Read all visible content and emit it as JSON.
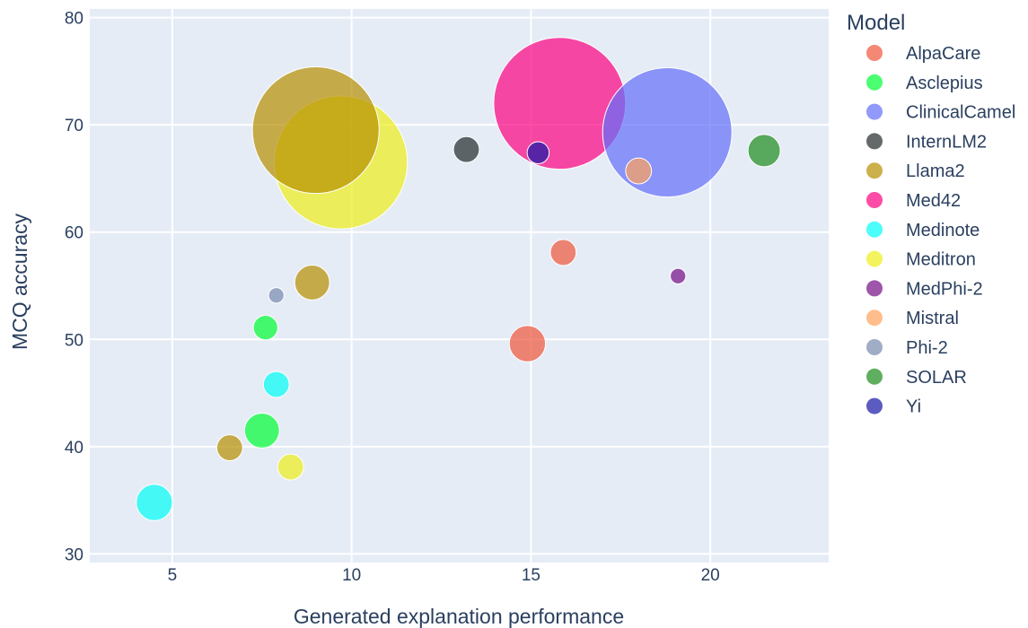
{
  "chart_data": {
    "type": "scatter",
    "title": "",
    "xlabel": "Generated explanation performance",
    "ylabel": "MCQ accuracy",
    "xlim": [
      2.7,
      23.3
    ],
    "ylim": [
      29.2,
      80.8
    ],
    "x_ticks": [
      5,
      10,
      15,
      20
    ],
    "y_ticks": [
      30,
      40,
      50,
      60,
      70,
      80
    ],
    "grid": true,
    "legend_title": "Model",
    "legend_position": "right",
    "series": [
      {
        "name": "AlpaCare",
        "color": "#EF553B",
        "points": [
          {
            "x": 15.9,
            "y": 58.1,
            "size": 2.0
          },
          {
            "x": 14.9,
            "y": 49.6,
            "size": 2.8
          }
        ]
      },
      {
        "name": "Asclepius",
        "color": "#00FE35",
        "points": [
          {
            "x": 7.6,
            "y": 51.1,
            "size": 1.9
          },
          {
            "x": 7.5,
            "y": 41.5,
            "size": 2.7
          }
        ]
      },
      {
        "name": "ClinicalCamel",
        "color": "#636EFA",
        "points": [
          {
            "x": 18.8,
            "y": 69.3,
            "size": 10.0
          }
        ]
      },
      {
        "name": "InternLM2",
        "color": "#222A2A",
        "points": [
          {
            "x": 13.2,
            "y": 67.7,
            "size": 2.0
          }
        ]
      },
      {
        "name": "Llama2",
        "color": "#B68E00",
        "points": [
          {
            "x": 9.0,
            "y": 69.5,
            "size": 9.8
          },
          {
            "x": 8.9,
            "y": 55.3,
            "size": 2.7
          },
          {
            "x": 6.6,
            "y": 39.9,
            "size": 2.0
          }
        ]
      },
      {
        "name": "Med42",
        "color": "#FC0080",
        "points": [
          {
            "x": 15.8,
            "y": 72.0,
            "size": 10.2
          }
        ]
      },
      {
        "name": "Medinote",
        "color": "#00FEF6",
        "points": [
          {
            "x": 7.9,
            "y": 45.8,
            "size": 2.0
          },
          {
            "x": 4.5,
            "y": 34.8,
            "size": 2.8
          }
        ]
      },
      {
        "name": "Meditron",
        "color": "#EEEE1A",
        "points": [
          {
            "x": 9.7,
            "y": 66.5,
            "size": 10.3
          },
          {
            "x": 8.3,
            "y": 38.1,
            "size": 2.0
          }
        ]
      },
      {
        "name": "MedPhi-2",
        "color": "#750D86",
        "points": [
          {
            "x": 19.1,
            "y": 55.9,
            "size": 1.2
          }
        ]
      },
      {
        "name": "Mistral",
        "color": "#FFA15A",
        "points": [
          {
            "x": 18.0,
            "y": 65.7,
            "size": 2.0
          }
        ]
      },
      {
        "name": "Phi-2",
        "color": "#778AAE",
        "points": [
          {
            "x": 7.9,
            "y": 54.1,
            "size": 1.2
          }
        ]
      },
      {
        "name": "SOLAR",
        "color": "#1C8C1C",
        "points": [
          {
            "x": 21.5,
            "y": 67.6,
            "size": 2.5
          }
        ]
      },
      {
        "name": "Yi",
        "color": "#1616A7",
        "points": [
          {
            "x": 15.2,
            "y": 67.4,
            "size": 1.7
          }
        ]
      }
    ]
  }
}
